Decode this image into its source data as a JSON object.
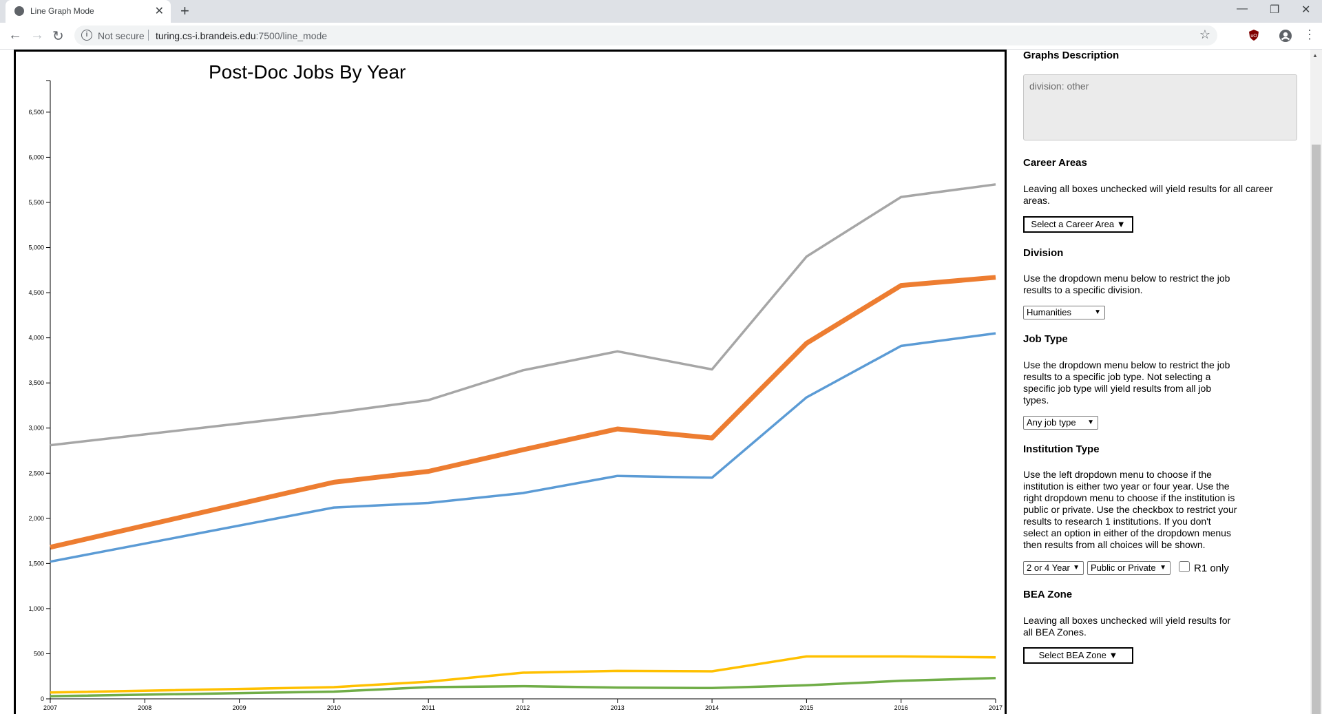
{
  "browser": {
    "tab_title": "Line Graph Mode",
    "tab_close": "✕",
    "new_tab": "+",
    "address": {
      "security_label": "Not secure",
      "url_host": "turing.cs-i.brandeis.edu",
      "url_path": ":7500/line_mode"
    },
    "window_controls": {
      "minimize": "—",
      "restore": "❐",
      "close": "✕"
    }
  },
  "chart_data": {
    "type": "line",
    "title": "Post-Doc Jobs By Year",
    "x": [
      2007,
      2008,
      2009,
      2010,
      2011,
      2012,
      2013,
      2014,
      2015,
      2016,
      2017
    ],
    "x_tick_labels": [
      "2007",
      "2008",
      "2009",
      "2010",
      "2011",
      "2012",
      "2013",
      "2014",
      "2015",
      "2016",
      "2017"
    ],
    "y_ticks": [
      0,
      500,
      1000,
      1500,
      2000,
      2500,
      3000,
      3500,
      4000,
      4500,
      5000,
      5500,
      6000,
      6500
    ],
    "y_tick_labels": [
      "0",
      "500",
      "1,000",
      "1,500",
      "2,000",
      "2,500",
      "3,000",
      "3,500",
      "4,000",
      "4,500",
      "5,000",
      "5,500",
      "6,000",
      "6,500"
    ],
    "ylim": [
      0,
      6850
    ],
    "xlabel": "",
    "ylabel": "",
    "series": [
      {
        "color": "#a6a6a6",
        "width": 3.5,
        "points": [
          [
            2007,
            2810
          ],
          [
            2010,
            3170
          ],
          [
            2011,
            3310
          ],
          [
            2012,
            3640
          ],
          [
            2013,
            3850
          ],
          [
            2014,
            3650
          ],
          [
            2015,
            4900
          ],
          [
            2016,
            5560
          ],
          [
            2017,
            5700
          ]
        ]
      },
      {
        "color": "#ed7d31",
        "width": 7,
        "points": [
          [
            2007,
            1680
          ],
          [
            2010,
            2400
          ],
          [
            2011,
            2520
          ],
          [
            2012,
            2760
          ],
          [
            2013,
            2990
          ],
          [
            2014,
            2890
          ],
          [
            2015,
            3940
          ],
          [
            2016,
            4580
          ],
          [
            2017,
            4670
          ]
        ]
      },
      {
        "color": "#5b9bd5",
        "width": 3.5,
        "points": [
          [
            2007,
            1520
          ],
          [
            2010,
            2120
          ],
          [
            2011,
            2170
          ],
          [
            2012,
            2280
          ],
          [
            2013,
            2470
          ],
          [
            2014,
            2450
          ],
          [
            2015,
            3340
          ],
          [
            2016,
            3910
          ],
          [
            2017,
            4050
          ]
        ]
      },
      {
        "color": "#ffc000",
        "width": 3.5,
        "points": [
          [
            2007,
            70
          ],
          [
            2010,
            130
          ],
          [
            2011,
            190
          ],
          [
            2012,
            290
          ],
          [
            2013,
            310
          ],
          [
            2014,
            305
          ],
          [
            2015,
            470
          ],
          [
            2016,
            470
          ],
          [
            2017,
            460
          ]
        ]
      },
      {
        "color": "#70ad47",
        "width": 3.5,
        "points": [
          [
            2007,
            30
          ],
          [
            2010,
            80
          ],
          [
            2011,
            130
          ],
          [
            2012,
            140
          ],
          [
            2013,
            125
          ],
          [
            2014,
            120
          ],
          [
            2015,
            150
          ],
          [
            2016,
            200
          ],
          [
            2017,
            230
          ]
        ]
      }
    ]
  },
  "panel": {
    "graphs_description": {
      "heading": "Graphs Description",
      "text": "division: other"
    },
    "career_areas": {
      "heading": "Career Areas",
      "text_l1": "Leaving all boxes unchecked will yield results for all career",
      "text_l2": "areas.",
      "button": "Select a Career Area ▼"
    },
    "division": {
      "heading": "Division",
      "text_l1": "Use the dropdown menu below to restrict the job",
      "text_l2": "results to a specific division.",
      "selected": "Humanities"
    },
    "job_type": {
      "heading": "Job Type",
      "text_l1": "Use the dropdown menu below to restrict the job",
      "text_l2": "results to a specific job type. Not selecting a",
      "text_l3": "specific job type will yield results from all job",
      "text_l4": "types.",
      "selected": "Any job type"
    },
    "institution_type": {
      "heading": "Institution Type",
      "text_l1": "Use the left dropdown menu to choose if the",
      "text_l2": "institution is either two year or four year. Use the",
      "text_l3": "right dropdown menu to choose if the institution is",
      "text_l4": "public or private. Use the checkbox to restrict your",
      "text_l5": "results to research 1 institutions. If you don't",
      "text_l6": "select an option in either of the dropdown menus",
      "text_l7": "then results from all choices will be shown.",
      "years_selected": "2 or 4 Year",
      "control_selected": "Public or Private",
      "r1_label": "R1 only",
      "r1_checked": false
    },
    "bea_zone": {
      "heading": "BEA Zone",
      "text_l1": "Leaving all boxes unchecked will yield results for",
      "text_l2": "all BEA Zones.",
      "button": "Select BEA Zone ▼"
    }
  }
}
